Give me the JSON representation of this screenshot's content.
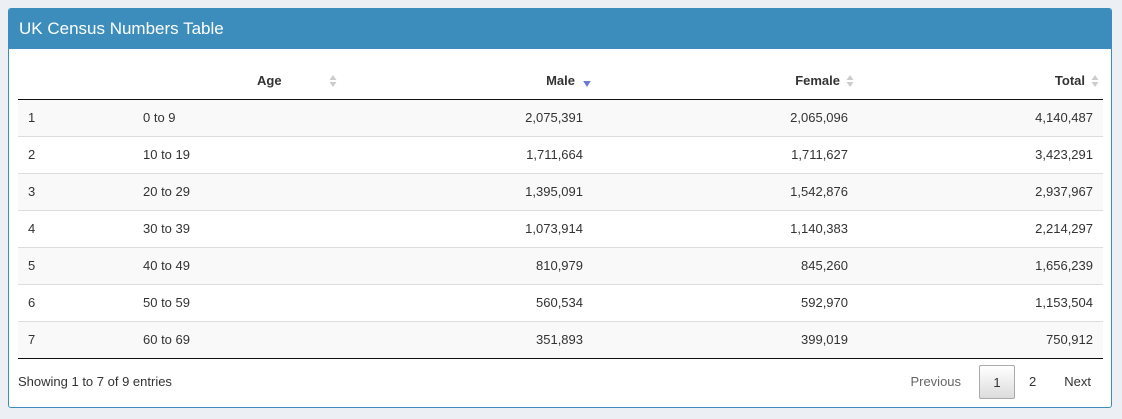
{
  "header": {
    "title": "UK Census Numbers Table"
  },
  "table": {
    "columns": [
      "",
      "Age",
      "Male",
      "Female",
      "Total"
    ],
    "sorted_column": "Male",
    "sort_direction": "descending",
    "rows": [
      [
        "1",
        "0 to 9",
        "2,075,391",
        "2,065,096",
        "4,140,487"
      ],
      [
        "2",
        "10 to 19",
        "1,711,664",
        "1,711,627",
        "3,423,291"
      ],
      [
        "3",
        "20 to 29",
        "1,395,091",
        "1,542,876",
        "2,937,967"
      ],
      [
        "4",
        "30 to 39",
        "1,073,914",
        "1,140,383",
        "2,214,297"
      ],
      [
        "5",
        "40 to 49",
        "810,979",
        "845,260",
        "1,656,239"
      ],
      [
        "6",
        "50 to 59",
        "560,534",
        "592,970",
        "1,153,504"
      ],
      [
        "7",
        "60 to 69",
        "351,893",
        "399,019",
        "750,912"
      ]
    ]
  },
  "footer": {
    "info": "Showing 1 to 7 of 9 entries",
    "previous": "Previous",
    "pages": [
      "1",
      "2"
    ],
    "current_page": "1",
    "next": "Next"
  },
  "colors": {
    "header_bg": "#3c8dbc",
    "sort_active": "#6a7bd1",
    "sort_inactive": "#cccccc"
  }
}
